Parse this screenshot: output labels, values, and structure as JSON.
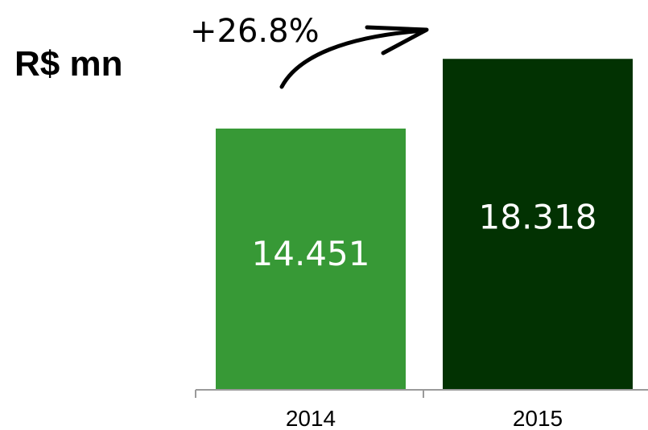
{
  "chart_data": {
    "type": "bar",
    "title": "",
    "unit_label": "R$ mn",
    "categories": [
      "2014",
      "2015"
    ],
    "values": [
      14451,
      18318
    ],
    "value_labels": [
      "14.451",
      "18.318"
    ],
    "colors": [
      "#379936",
      "#023202"
    ],
    "annotation": "+26.8%",
    "ylim": [
      0,
      19800
    ],
    "grid": false,
    "legend": "none"
  }
}
